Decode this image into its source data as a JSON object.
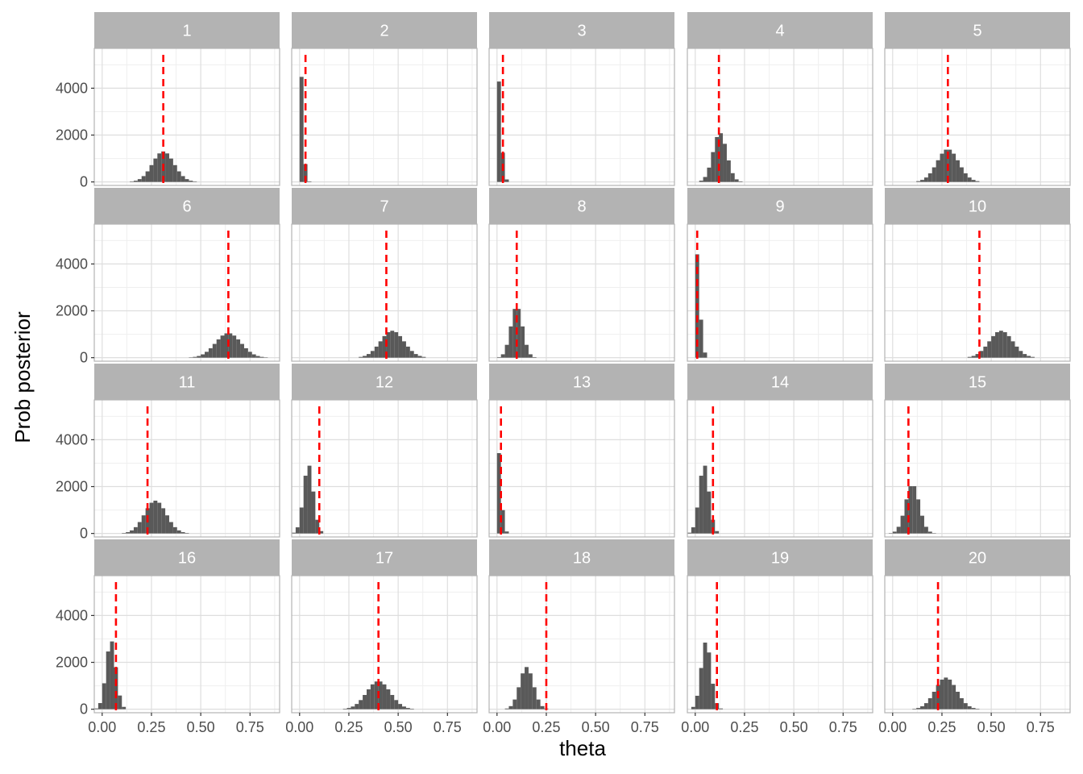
{
  "chart_data": {
    "type": "bar",
    "subtype": "faceted-histogram",
    "xlabel": "theta",
    "ylabel": "Prob posterior",
    "xlim": [
      -0.04,
      0.9
    ],
    "ylim": [
      -150,
      5700
    ],
    "x_ticks": [
      0,
      0.25,
      0.5,
      0.75
    ],
    "x_tick_labels": [
      "0.00",
      "0.25",
      "0.50",
      "0.75"
    ],
    "y_ticks": [
      0,
      2000,
      4000
    ],
    "y_tick_labels": [
      "0",
      "2000",
      "4000"
    ],
    "grid": true,
    "layout": {
      "rows": 4,
      "cols": 5
    },
    "bin_width": 0.02,
    "colors": {
      "bar": "#595959",
      "reference_line": "#ff0000",
      "strip": "#b3b3b3",
      "strip_text": "#ffffff",
      "grid_major": "#dedede",
      "grid_minor": "#efefef",
      "panel_border": "#b3b3b3"
    },
    "panels": [
      {
        "label": "1",
        "ref": 0.31,
        "shape": "normal",
        "center": 0.31,
        "sd": 0.055,
        "peak": 1300
      },
      {
        "label": "2",
        "ref": 0.03,
        "shape": "halfnorm",
        "center": 0.0,
        "sd": 0.015,
        "peak": 5600
      },
      {
        "label": "3",
        "ref": 0.03,
        "shape": "halfnorm",
        "center": 0.0,
        "sd": 0.018,
        "peak": 5000
      },
      {
        "label": "4",
        "ref": 0.12,
        "shape": "normal",
        "center": 0.125,
        "sd": 0.035,
        "peak": 2100
      },
      {
        "label": "5",
        "ref": 0.28,
        "shape": "normal",
        "center": 0.28,
        "sd": 0.055,
        "peak": 1400
      },
      {
        "label": "6",
        "ref": 0.64,
        "shape": "normal",
        "center": 0.64,
        "sd": 0.065,
        "peak": 1050
      },
      {
        "label": "7",
        "ref": 0.44,
        "shape": "normal",
        "center": 0.47,
        "sd": 0.06,
        "peak": 1150
      },
      {
        "label": "8",
        "ref": 0.1,
        "shape": "normal",
        "center": 0.1,
        "sd": 0.03,
        "peak": 2200
      },
      {
        "label": "9",
        "ref": 0.01,
        "shape": "halfnorm",
        "center": 0.0,
        "sd": 0.02,
        "peak": 5000
      },
      {
        "label": "10",
        "ref": 0.44,
        "shape": "normal",
        "center": 0.55,
        "sd": 0.06,
        "peak": 1150
      },
      {
        "label": "11",
        "ref": 0.23,
        "shape": "normal",
        "center": 0.27,
        "sd": 0.055,
        "peak": 1400
      },
      {
        "label": "12",
        "ref": 0.1,
        "shape": "normal",
        "center": 0.045,
        "sd": 0.025,
        "peak": 2950
      },
      {
        "label": "13",
        "ref": 0.02,
        "shape": "halfnorm",
        "center": 0.0,
        "sd": 0.018,
        "peak": 4000
      },
      {
        "label": "14",
        "ref": 0.09,
        "shape": "normal",
        "center": 0.045,
        "sd": 0.025,
        "peak": 2950
      },
      {
        "label": "15",
        "ref": 0.08,
        "shape": "normal",
        "center": 0.1,
        "sd": 0.035,
        "peak": 2100
      },
      {
        "label": "16",
        "ref": 0.07,
        "shape": "normal",
        "center": 0.045,
        "sd": 0.025,
        "peak": 2950
      },
      {
        "label": "17",
        "ref": 0.4,
        "shape": "normal",
        "center": 0.4,
        "sd": 0.06,
        "peak": 1200
      },
      {
        "label": "18",
        "ref": 0.25,
        "shape": "normal",
        "center": 0.15,
        "sd": 0.035,
        "peak": 1800
      },
      {
        "label": "19",
        "ref": 0.11,
        "shape": "normal",
        "center": 0.055,
        "sd": 0.025,
        "peak": 2900
      },
      {
        "label": "20",
        "ref": 0.23,
        "shape": "normal",
        "center": 0.27,
        "sd": 0.055,
        "peak": 1350
      }
    ]
  }
}
